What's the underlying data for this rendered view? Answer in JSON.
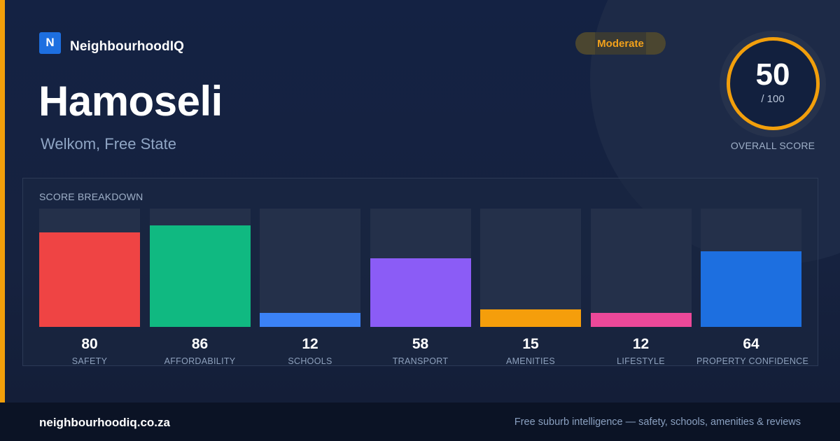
{
  "brand": {
    "logo_letter": "N",
    "name": "NeighbourhoodIQ"
  },
  "suburb": {
    "name": "Hamoseli",
    "location": "Welkom, Free State"
  },
  "rating_badge": {
    "label": "Moderate",
    "color": "#f2a11b"
  },
  "overall": {
    "score": "50",
    "total": "/ 100",
    "label": "OVERALL SCORE",
    "ring_color": "#f29f0b"
  },
  "breakdown": {
    "title": "SCORE BREAKDOWN",
    "max": 100,
    "items": [
      {
        "label": "SAFETY",
        "value": 80,
        "color": "#ef4444"
      },
      {
        "label": "AFFORDABILITY",
        "value": 86,
        "color": "#10b981"
      },
      {
        "label": "SCHOOLS",
        "value": 12,
        "color": "#3b82f6"
      },
      {
        "label": "TRANSPORT",
        "value": 58,
        "color": "#8b5cf6"
      },
      {
        "label": "AMENITIES",
        "value": 15,
        "color": "#f59e0b"
      },
      {
        "label": "LIFESTYLE",
        "value": 12,
        "color": "#ec4899"
      },
      {
        "label": "PROPERTY CONFIDENCE",
        "value": 64,
        "color": "#1d6fe0"
      }
    ]
  },
  "footer": {
    "url": "neighbourhoodiq.co.za",
    "tagline": "Free suburb intelligence — safety, schools, amenities & reviews"
  }
}
